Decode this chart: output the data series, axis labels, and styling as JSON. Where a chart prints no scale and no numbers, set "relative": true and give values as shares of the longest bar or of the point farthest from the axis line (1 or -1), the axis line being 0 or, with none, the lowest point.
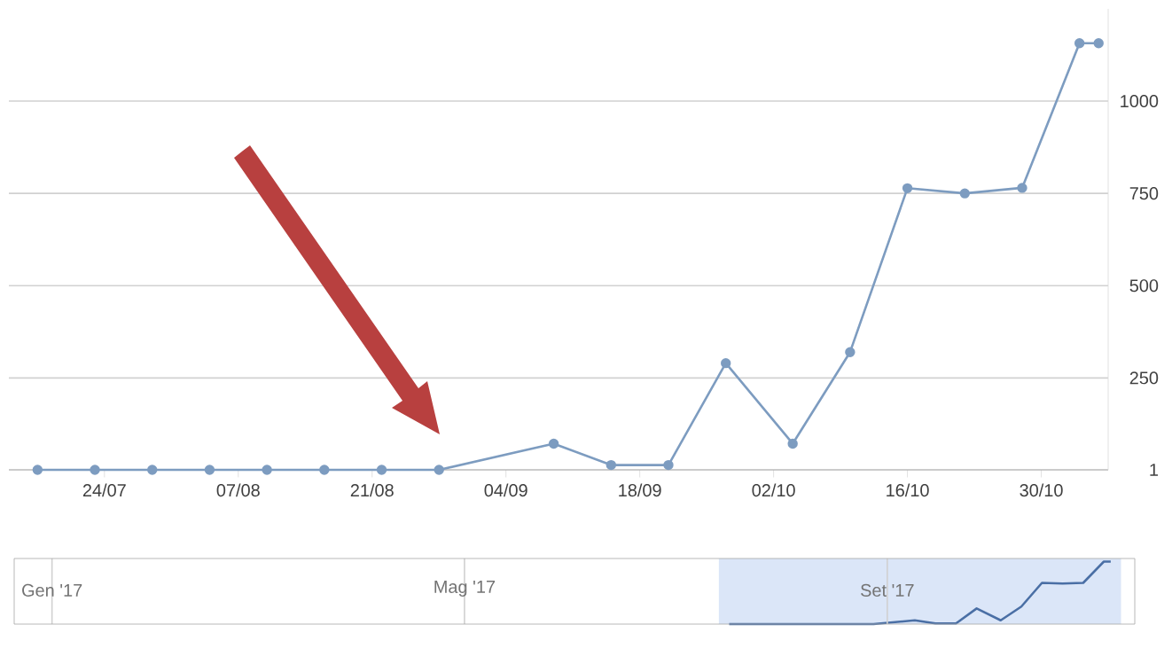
{
  "chart_data": [
    {
      "type": "line",
      "x": [
        "2017-07-17",
        "2017-07-23",
        "2017-07-29",
        "2017-08-04",
        "2017-08-10",
        "2017-08-16",
        "2017-08-22",
        "2017-08-28",
        "2017-09-09",
        "2017-09-15",
        "2017-09-21",
        "2017-09-27",
        "2017-10-04",
        "2017-10-10",
        "2017-10-16",
        "2017-10-22",
        "2017-10-28",
        "2017-11-03",
        "2017-11-05"
      ],
      "values": [
        1,
        1,
        1,
        1,
        1,
        1,
        1,
        1,
        72,
        14,
        14,
        290,
        72,
        320,
        764,
        750,
        765,
        1157,
        1157
      ],
      "color": "#7d9cc0",
      "marker": "circle",
      "line_style": "solid",
      "grid": "y",
      "xlim": [
        "2017-07-14",
        "2017-11-06"
      ],
      "xticks": [
        {
          "value": "2017-07-24",
          "label": "24/07"
        },
        {
          "value": "2017-08-07",
          "label": "07/08"
        },
        {
          "value": "2017-08-21",
          "label": "21/08"
        },
        {
          "value": "2017-09-04",
          "label": "04/09"
        },
        {
          "value": "2017-09-18",
          "label": "18/09"
        },
        {
          "value": "2017-10-02",
          "label": "02/10"
        },
        {
          "value": "2017-10-16",
          "label": "16/10"
        },
        {
          "value": "2017-10-30",
          "label": "30/10"
        }
      ],
      "ylim": [
        1,
        1250
      ],
      "yticks": [
        1,
        250,
        500,
        750,
        1000
      ]
    },
    {
      "type": "line",
      "relative": true,
      "x": [
        "2017-07-17",
        "2017-07-23",
        "2017-07-29",
        "2017-08-04",
        "2017-08-10",
        "2017-08-16",
        "2017-08-22",
        "2017-08-28",
        "2017-09-09",
        "2017-09-15",
        "2017-09-21",
        "2017-09-27",
        "2017-10-04",
        "2017-10-10",
        "2017-10-16",
        "2017-10-22",
        "2017-10-28",
        "2017-11-03",
        "2017-11-05"
      ],
      "values": [
        0,
        0,
        0,
        0,
        0,
        0,
        0,
        0,
        0.06,
        0.01,
        0.01,
        0.25,
        0.06,
        0.28,
        0.66,
        0.65,
        0.66,
        1,
        1
      ],
      "color": "#4a6fa5",
      "grid": "x",
      "tick_labels": "x",
      "xlim": [
        "2016-12-21",
        "2017-11-12"
      ],
      "xticks": [
        {
          "value": "2017-01-01",
          "label": "Gen '17"
        },
        {
          "value": "2017-05-01",
          "label": "Mag '17"
        },
        {
          "value": "2017-09-01",
          "label": "Set '17"
        }
      ],
      "bands": [
        {
          "axis": "x",
          "from": "2017-07-14",
          "to": "2017-11-08",
          "color": "#dbe6f8"
        }
      ]
    }
  ]
}
